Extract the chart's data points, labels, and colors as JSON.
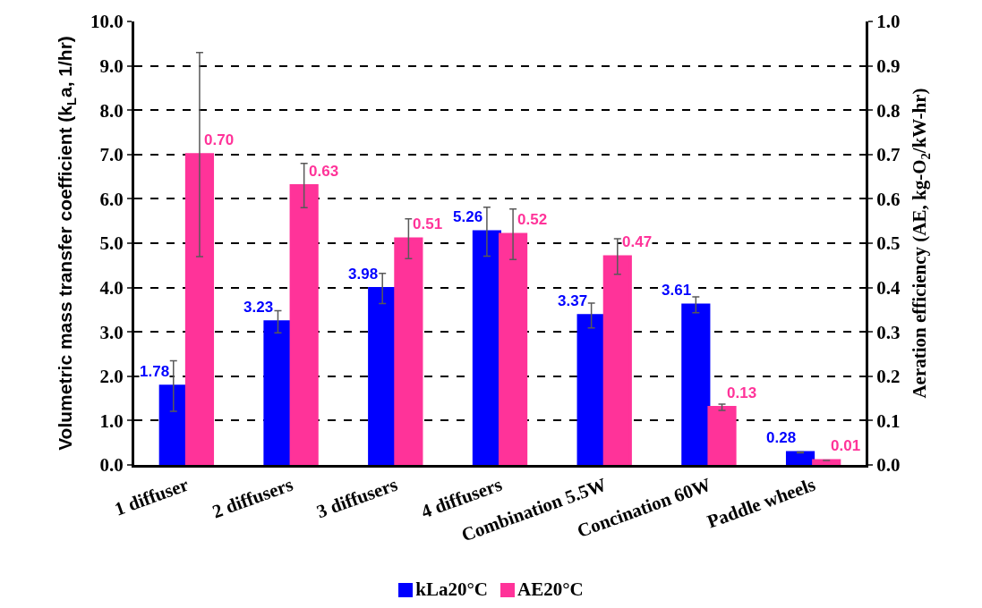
{
  "chart_data": {
    "type": "bar",
    "ylabel": "Volumetric mass transfer coefficient (k$_{L}$a, 1/hr)",
    "y2label": "Aeration efficiency (AE, kg-O$_{2}$/kW-hr)",
    "categories": [
      "1 diffuser",
      "2 diffusers",
      "3 diffusers",
      "4 diffusers",
      "Combination 5.5W",
      "Concination 60W",
      "Paddle wheels"
    ],
    "series": [
      {
        "name": "kLa20°C",
        "color": "#0000ff",
        "values": [
          1.78,
          3.23,
          3.98,
          5.26,
          3.37,
          3.61,
          0.28
        ],
        "value_labels": [
          "1.78",
          "3.23",
          "3.98",
          "5.26",
          "3.37",
          "3.61",
          "0.28"
        ],
        "errors": [
          0.57,
          0.25,
          0.34,
          0.55,
          0.28,
          0.18,
          0.01
        ]
      },
      {
        "name": "AE20°C",
        "color": "#ff3399",
        "axis": "y2",
        "values": [
          0.7,
          0.63,
          0.51,
          0.52,
          0.47,
          0.13,
          0.01
        ],
        "value_labels": [
          "0.70",
          "0.63",
          "0.51",
          "0.52",
          "0.47",
          "0.13",
          "0.01"
        ],
        "errors": [
          0.23,
          0.05,
          0.045,
          0.057,
          0.04,
          0.007,
          null
        ]
      }
    ],
    "ylim": [
      0,
      10
    ],
    "yticks": [
      {
        "value": 0,
        "label": "0.0"
      },
      {
        "value": 1,
        "label": "1.0"
      },
      {
        "value": 2,
        "label": "2.0"
      },
      {
        "value": 3,
        "label": "3.0"
      },
      {
        "value": 4,
        "label": "4.0"
      },
      {
        "value": 5,
        "label": "5.0"
      },
      {
        "value": 6,
        "label": "6.0"
      },
      {
        "value": 7,
        "label": "7.0"
      },
      {
        "value": 8,
        "label": "8.0"
      },
      {
        "value": 9,
        "label": "9.0"
      },
      {
        "value": 10,
        "label": "10.0"
      }
    ],
    "y2lim": [
      0,
      1
    ],
    "y2ticks": [
      {
        "value": 0,
        "label": "0.0"
      },
      {
        "value": 0.1,
        "label": "0.1"
      },
      {
        "value": 0.2,
        "label": "0.2"
      },
      {
        "value": 0.3,
        "label": "0.3"
      },
      {
        "value": 0.4,
        "label": "0.4"
      },
      {
        "value": 0.5,
        "label": "0.5"
      },
      {
        "value": 0.6,
        "label": "0.6"
      },
      {
        "value": 0.7,
        "label": "0.7"
      },
      {
        "value": 0.8,
        "label": "0.8"
      },
      {
        "value": 0.9,
        "label": "0.9"
      },
      {
        "value": 1,
        "label": "1.0"
      }
    ],
    "grid": "y",
    "legend": "bottom"
  }
}
